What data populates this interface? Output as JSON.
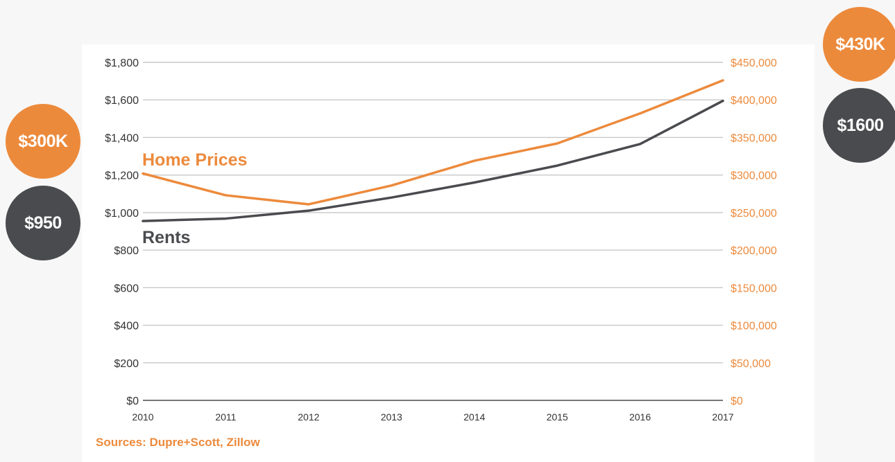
{
  "chart_data": {
    "type": "line",
    "x": [
      "2010",
      "2011",
      "2012",
      "2013",
      "2014",
      "2015",
      "2016",
      "2017"
    ],
    "left_axis": {
      "ylim": [
        0,
        1800
      ],
      "ticks": [
        "$0",
        "$200",
        "$400",
        "$600",
        "$800",
        "$1,000",
        "$1,200",
        "$1,400",
        "$1,600",
        "$1,800"
      ]
    },
    "right_axis": {
      "ylim": [
        0,
        450000
      ],
      "ticks": [
        "$0",
        "$50,000",
        "$100,000",
        "$150,000",
        "$200,000",
        "$250,000",
        "$300,000",
        "$350,000",
        "$400,000",
        "$450,000"
      ]
    },
    "series": [
      {
        "name": "Home Prices",
        "axis": "right",
        "color": "#ec8a3c",
        "values": [
          302000,
          273000,
          261000,
          286000,
          319000,
          342000,
          382000,
          426000
        ]
      },
      {
        "name": "Rents",
        "axis": "left",
        "color": "#4a4b4e",
        "values": [
          955,
          968,
          1010,
          1080,
          1160,
          1250,
          1365,
          1595
        ]
      }
    ],
    "grid": true,
    "source": "Sources: Dupre+Scott, Zillow"
  },
  "bubbles": {
    "home_start": "$300K",
    "rent_start": "$950",
    "home_end": "$430K",
    "rent_end": "$1600"
  },
  "colors": {
    "home": "#ec8a3c",
    "rent": "#4a4b4e",
    "grid": "#c8c8c8",
    "left_tick": "#333333"
  }
}
